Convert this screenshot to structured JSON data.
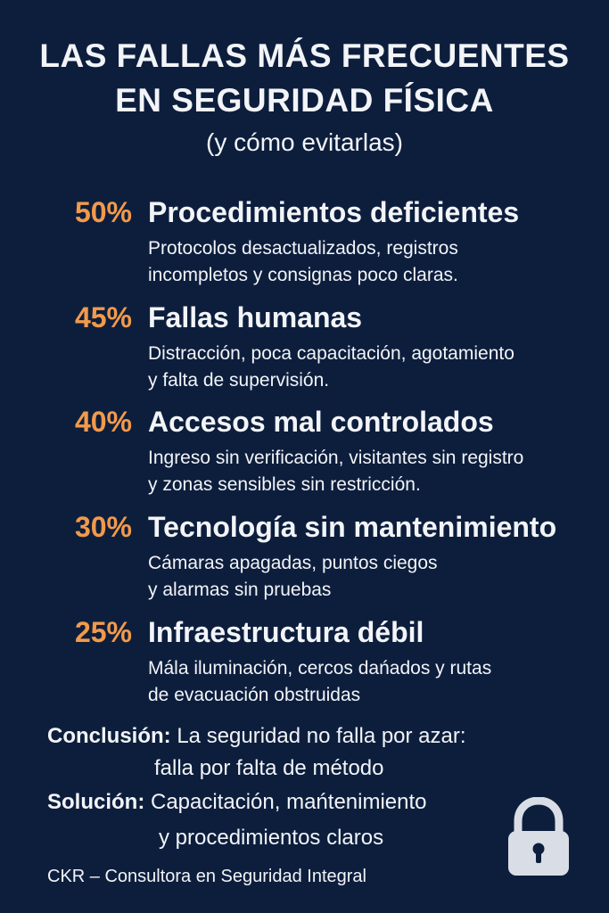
{
  "header": {
    "title_line1": "LAS FALLAS MÁS FRECUENTES",
    "title_line2": "EN SEGURIDAD FÍSICA",
    "subtitle": "(y cómo evitarlas)"
  },
  "items": [
    {
      "percent": "50%",
      "title": "Procedimientos deficientes",
      "desc_line1": "Protocolos desactualizados, registros",
      "desc_line2": "incompletos y consignas poco claras."
    },
    {
      "percent": "45%",
      "title": "Fallas humanas",
      "desc_line1": "Distracción, poca capacitación, agotamiento",
      "desc_line2": "y falta de supervisión."
    },
    {
      "percent": "40%",
      "title": "Accesos mal controlados",
      "desc_line1": "Ingreso sin verificación, visitantes sin registro",
      "desc_line2": "y zonas sensibles sin restricción."
    },
    {
      "percent": "30%",
      "title": "Tecnología sin mantenimiento",
      "desc_line1": "Cámaras apagadas, puntos ciegos",
      "desc_line2": "y alarmas sin pruebas"
    },
    {
      "percent": "25%",
      "title": "Infraestructura débil",
      "desc_line1": "Mála iluminación, cercos dańados y rutas",
      "desc_line2": "de evacuación obstruidas"
    }
  ],
  "conclusion": {
    "label": "Conclusión:",
    "text_line1": "La seguridad no falla por azar:",
    "text_line2": "falla por falta de método"
  },
  "solution": {
    "label": "Solución:",
    "text_line1": "Capacitación, mańtenimiento",
    "text_line2": "y procedimientos claros"
  },
  "footer": {
    "text": "CKR – Consultora en Seguridad Integral"
  },
  "colors": {
    "background": "#0d1e3d",
    "accent": "#f29a4a",
    "text": "#f2f4f7",
    "lock": "#d9dee6"
  },
  "icons": {
    "lock": "padlock-icon"
  }
}
